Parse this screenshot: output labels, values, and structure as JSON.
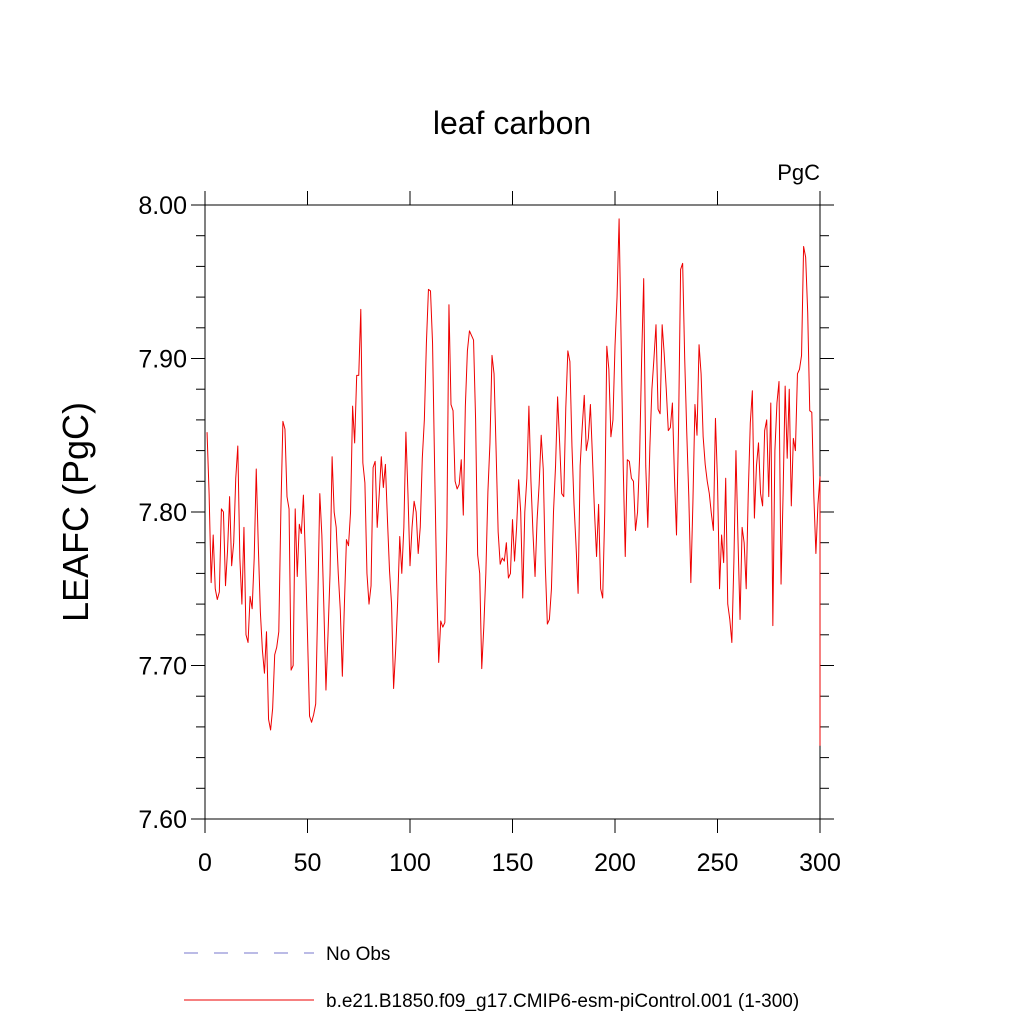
{
  "chart_data": {
    "type": "line",
    "title": "leaf carbon",
    "units_label": "PgC",
    "ylabel": "LEAFC  (PgC)",
    "xlabel": "",
    "xlim": [
      0,
      300
    ],
    "ylim": [
      7.6,
      8.0
    ],
    "x_ticks": [
      0,
      50,
      100,
      150,
      200,
      250,
      300
    ],
    "x_tick_labels": [
      "0",
      "50",
      "100",
      "150",
      "200",
      "250",
      "300"
    ],
    "y_ticks": [
      7.6,
      7.7,
      7.8,
      7.9,
      8.0
    ],
    "y_tick_labels": [
      "7.60",
      "7.70",
      "7.80",
      "7.90",
      "8.00"
    ],
    "grid": false,
    "legend_position": "bottom",
    "legend": [
      {
        "label": "No Obs",
        "color": "#7777cc",
        "style": "dashed"
      },
      {
        "label": "b.e21.B1850.f09_g17.CMIP6-esm-piControl.001 (1-300)",
        "color": "#ee0000",
        "style": "solid"
      }
    ],
    "series": [
      {
        "name": "b.e21.B1850.f09_g17.CMIP6-esm-piControl.001 (1-300)",
        "color": "#ee0000",
        "x_start": 1,
        "x_step": 1,
        "values": [
          7.852,
          7.812,
          7.754,
          7.785,
          7.75,
          7.743,
          7.748,
          7.802,
          7.8,
          7.752,
          7.775,
          7.81,
          7.765,
          7.78,
          7.822,
          7.843,
          7.77,
          7.74,
          7.79,
          7.72,
          7.715,
          7.745,
          7.737,
          7.77,
          7.828,
          7.778,
          7.735,
          7.71,
          7.695,
          7.722,
          7.665,
          7.658,
          7.672,
          7.707,
          7.712,
          7.722,
          7.8,
          7.859,
          7.854,
          7.81,
          7.802,
          7.697,
          7.7,
          7.802,
          7.758,
          7.792,
          7.786,
          7.811,
          7.77,
          7.72,
          7.667,
          7.663,
          7.668,
          7.675,
          7.74,
          7.812,
          7.785,
          7.737,
          7.684,
          7.72,
          7.76,
          7.836,
          7.8,
          7.79,
          7.76,
          7.736,
          7.693,
          7.74,
          7.782,
          7.778,
          7.8,
          7.869,
          7.845,
          7.889,
          7.889,
          7.932,
          7.832,
          7.819,
          7.76,
          7.74,
          7.752,
          7.829,
          7.833,
          7.79,
          7.812,
          7.836,
          7.816,
          7.831,
          7.795,
          7.762,
          7.74,
          7.685,
          7.71,
          7.742,
          7.784,
          7.76,
          7.79,
          7.852,
          7.812,
          7.765,
          7.79,
          7.807,
          7.8,
          7.773,
          7.79,
          7.835,
          7.86,
          7.91,
          7.945,
          7.944,
          7.91,
          7.83,
          7.755,
          7.702,
          7.729,
          7.725,
          7.728,
          7.79,
          7.935,
          7.87,
          7.866,
          7.82,
          7.815,
          7.818,
          7.834,
          7.798,
          7.869,
          7.905,
          7.918,
          7.915,
          7.912,
          7.86,
          7.772,
          7.76,
          7.698,
          7.725,
          7.76,
          7.813,
          7.845,
          7.902,
          7.89,
          7.84,
          7.787,
          7.766,
          7.77,
          7.768,
          7.78,
          7.757,
          7.76,
          7.795,
          7.768,
          7.79,
          7.821,
          7.8,
          7.744,
          7.8,
          7.822,
          7.869,
          7.82,
          7.786,
          7.758,
          7.795,
          7.818,
          7.85,
          7.828,
          7.765,
          7.727,
          7.73,
          7.75,
          7.8,
          7.83,
          7.875,
          7.845,
          7.812,
          7.81,
          7.868,
          7.905,
          7.898,
          7.843,
          7.805,
          7.778,
          7.747,
          7.83,
          7.855,
          7.876,
          7.84,
          7.848,
          7.87,
          7.836,
          7.8,
          7.771,
          7.805,
          7.75,
          7.744,
          7.8,
          7.908,
          7.893,
          7.849,
          7.86,
          7.908,
          7.94,
          7.991,
          7.91,
          7.83,
          7.771,
          7.834,
          7.833,
          7.822,
          7.82,
          7.788,
          7.8,
          7.836,
          7.9,
          7.952,
          7.83,
          7.79,
          7.842,
          7.88,
          7.9,
          7.922,
          7.867,
          7.864,
          7.922,
          7.903,
          7.88,
          7.853,
          7.855,
          7.871,
          7.823,
          7.785,
          7.855,
          7.958,
          7.962,
          7.9,
          7.852,
          7.81,
          7.754,
          7.806,
          7.87,
          7.85,
          7.909,
          7.89,
          7.849,
          7.831,
          7.82,
          7.812,
          7.799,
          7.788,
          7.861,
          7.82,
          7.75,
          7.785,
          7.767,
          7.822,
          7.74,
          7.73,
          7.715,
          7.768,
          7.84,
          7.782,
          7.73,
          7.79,
          7.78,
          7.75,
          7.812,
          7.858,
          7.879,
          7.796,
          7.83,
          7.845,
          7.812,
          7.804,
          7.853,
          7.86,
          7.81,
          7.871,
          7.726,
          7.84,
          7.871,
          7.885,
          7.753,
          7.812,
          7.882,
          7.835,
          7.88,
          7.804,
          7.848,
          7.84,
          7.89,
          7.893,
          7.902,
          7.973,
          7.966,
          7.93,
          7.866,
          7.865,
          7.81,
          7.773,
          7.805,
          7.823
        ],
        "end_values": [
          7.808,
          7.79,
          7.74,
          7.648,
          7.71
        ]
      }
    ]
  }
}
